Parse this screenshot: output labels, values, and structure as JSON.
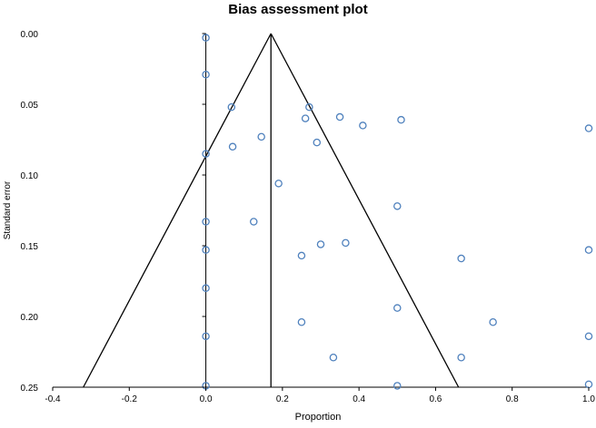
{
  "chart_data": {
    "type": "scatter",
    "title": "Bias assessment plot",
    "xlabel": "Proportion",
    "ylabel": "Standard error",
    "xlim": [
      -0.4,
      1.0
    ],
    "ylim": [
      0.0,
      0.25
    ],
    "y_inverted": true,
    "x_ticks": [
      "-0.4",
      "-0.2",
      "0.0",
      "0.2",
      "0.4",
      "0.6",
      "0.8",
      "1.0"
    ],
    "y_ticks": [
      "0.00",
      "0.05",
      "0.10",
      "0.15",
      "0.20",
      "0.25"
    ],
    "grid": false,
    "legend": "none",
    "marker_color": "#4f81bd",
    "line_color": "#000000",
    "pooled_proportion": 0.17,
    "funnel": {
      "apex": [
        0.17,
        0.0
      ],
      "left_base": [
        -0.32,
        0.25
      ],
      "right_base": [
        0.66,
        0.25
      ]
    },
    "points": [
      {
        "x": 0.0,
        "y": 0.003
      },
      {
        "x": 0.0,
        "y": 0.029
      },
      {
        "x": 0.067,
        "y": 0.052
      },
      {
        "x": 0.27,
        "y": 0.052
      },
      {
        "x": 0.26,
        "y": 0.06
      },
      {
        "x": 0.35,
        "y": 0.059
      },
      {
        "x": 0.41,
        "y": 0.065
      },
      {
        "x": 0.51,
        "y": 0.061
      },
      {
        "x": 1.0,
        "y": 0.067
      },
      {
        "x": 0.145,
        "y": 0.073
      },
      {
        "x": 0.29,
        "y": 0.077
      },
      {
        "x": 0.07,
        "y": 0.08
      },
      {
        "x": 0.0,
        "y": 0.085
      },
      {
        "x": 0.19,
        "y": 0.106
      },
      {
        "x": 0.5,
        "y": 0.122
      },
      {
        "x": 0.0,
        "y": 0.133
      },
      {
        "x": 0.125,
        "y": 0.133
      },
      {
        "x": 0.3,
        "y": 0.149
      },
      {
        "x": 0.365,
        "y": 0.148
      },
      {
        "x": 0.0,
        "y": 0.153
      },
      {
        "x": 0.25,
        "y": 0.157
      },
      {
        "x": 1.0,
        "y": 0.153
      },
      {
        "x": 0.667,
        "y": 0.159
      },
      {
        "x": 0.0,
        "y": 0.18
      },
      {
        "x": 0.5,
        "y": 0.194
      },
      {
        "x": 0.25,
        "y": 0.204
      },
      {
        "x": 0.75,
        "y": 0.204
      },
      {
        "x": 0.0,
        "y": 0.214
      },
      {
        "x": 1.0,
        "y": 0.214
      },
      {
        "x": 0.333,
        "y": 0.229
      },
      {
        "x": 0.667,
        "y": 0.229
      },
      {
        "x": 0.0,
        "y": 0.249
      },
      {
        "x": 0.5,
        "y": 0.249
      },
      {
        "x": 1.0,
        "y": 0.248
      }
    ]
  }
}
